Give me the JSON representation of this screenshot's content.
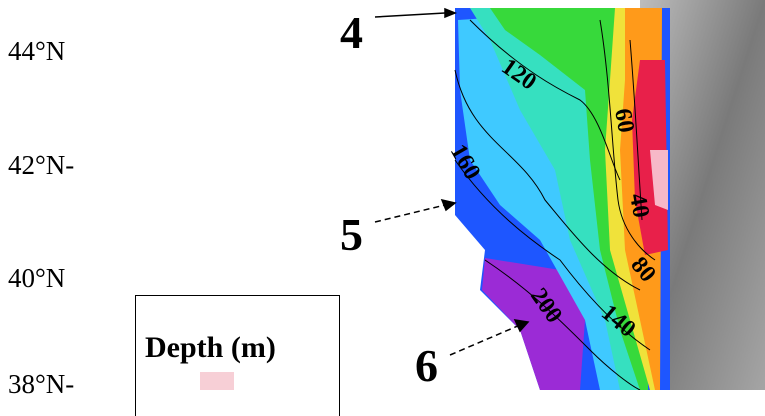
{
  "latitude_labels": [
    "44°N",
    "42°N-",
    "40°N",
    "38°N-"
  ],
  "transects": [
    "4",
    "5",
    "6"
  ],
  "contours": [
    "120",
    "160",
    "60",
    "40",
    "80",
    "200",
    "140"
  ],
  "legend": {
    "title": "Depth (m)",
    "first_color": "#f7cfd6"
  },
  "colors": {
    "shallow": "#e8204a",
    "mid": "#35d93a",
    "deep": "#1e56ff",
    "deepest": "#9b2bd6",
    "land": "#8a8a8a"
  }
}
